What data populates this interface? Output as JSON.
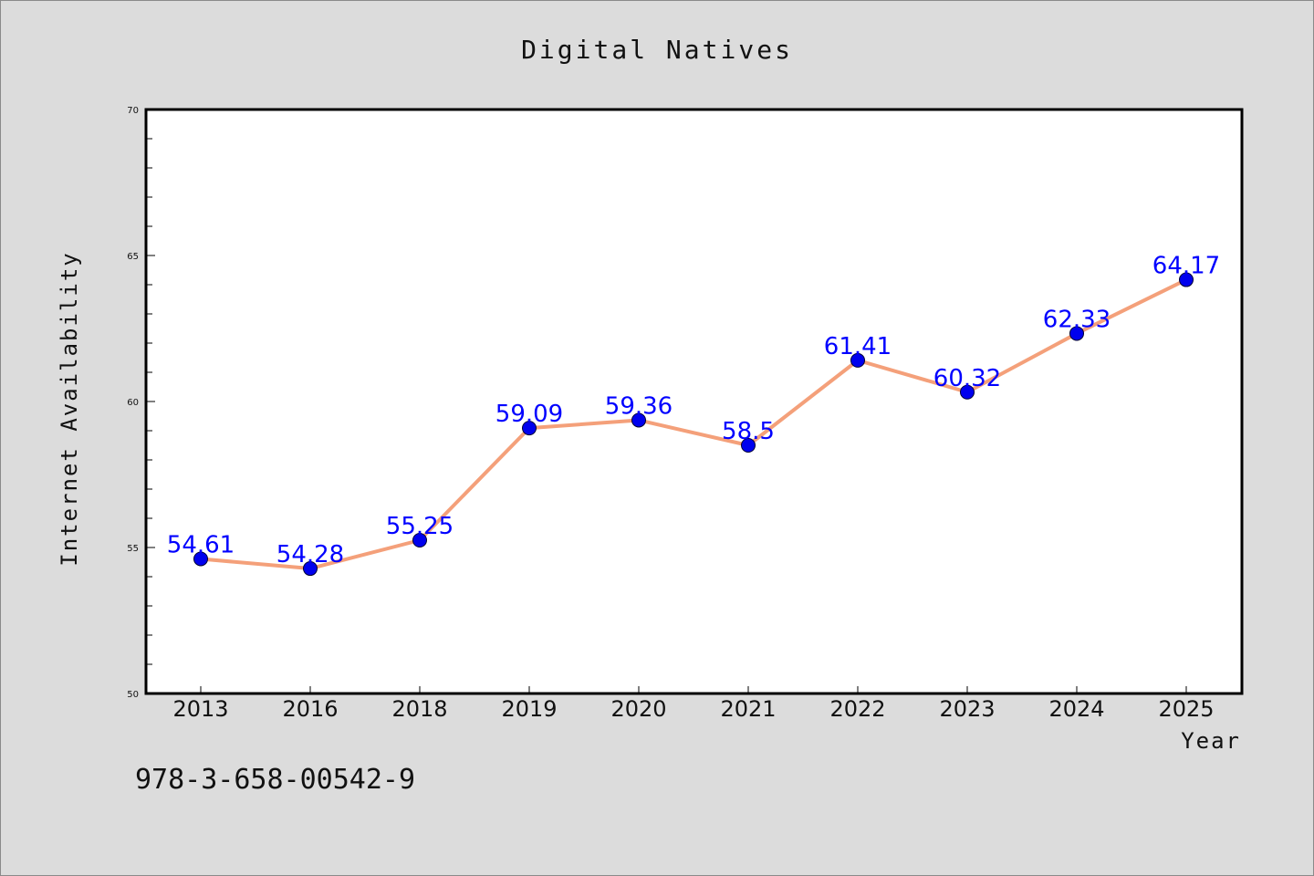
{
  "chart_data": {
    "type": "line",
    "title": "Digital Natives",
    "xlabel": "Year",
    "ylabel": "Internet Availability",
    "categories": [
      "2013",
      "2016",
      "2018",
      "2019",
      "2020",
      "2021",
      "2022",
      "2023",
      "2024",
      "2025"
    ],
    "series": [
      {
        "values": [
          54.61,
          54.28,
          55.25,
          59.09,
          59.36,
          58.5,
          61.41,
          60.32,
          62.33,
          64.17
        ],
        "labels": [
          "54.61",
          "54.28",
          "55.25",
          "59.09",
          "59.36",
          "58.5",
          "61.41",
          "60.32",
          "62.33",
          "64.17"
        ],
        "line_color": "#f4a07a",
        "marker_color": "#0000ee"
      }
    ],
    "ylim": [
      50,
      70
    ],
    "yticks": [
      "50",
      "55",
      "60",
      "65",
      "70"
    ],
    "grid": false,
    "legend": "none"
  },
  "footer": {
    "identifier": "978-3-658-00542-9"
  },
  "colors": {
    "background": "#dcdcdc",
    "plot_background": "#ffffff",
    "data_label": "#0000ff"
  }
}
